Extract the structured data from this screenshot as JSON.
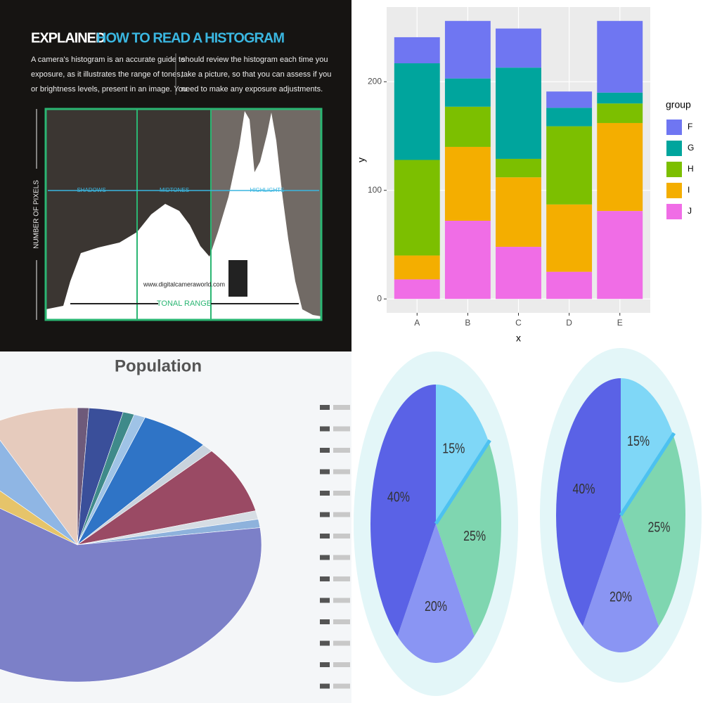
{
  "infographic": {
    "title_lead": "EXPLAINED",
    "title_main": "HOW TO READ A HISTOGRAM",
    "left_lines": [
      "A camera's histogram is an accurate guide to",
      "exposure, as it illustrates the range of tones,",
      "or brightness levels, present in an image. You"
    ],
    "right_lines": [
      "should review the histogram each time you",
      "take a picture, so that you can assess if you",
      "need to make any exposure adjustments."
    ],
    "y_label": "NUMBER OF PIXELS",
    "zones": [
      "SHADOWS",
      "MIDTONES",
      "HIGHLIGHTS"
    ],
    "website": "www.digitalcameraworld.com",
    "x_label": "TONAL RANGE"
  },
  "chart_data": [
    {
      "type": "stacked_bar",
      "x_label": "x",
      "y_label": "y",
      "legend_title": "group",
      "categories": [
        "A",
        "B",
        "C",
        "D",
        "E"
      ],
      "series": [
        {
          "name": "F",
          "color": "#6f76f2",
          "values": [
            24,
            53,
            36,
            15,
            66
          ]
        },
        {
          "name": "G",
          "color": "#00a59d",
          "values": [
            89,
            26,
            84,
            17,
            10
          ]
        },
        {
          "name": "H",
          "color": "#7cbf00",
          "values": [
            88,
            37,
            17,
            72,
            18
          ]
        },
        {
          "name": "I",
          "color": "#f4ae00",
          "values": [
            22,
            68,
            64,
            62,
            81
          ]
        },
        {
          "name": "J",
          "color": "#f06de6",
          "values": [
            18,
            72,
            48,
            25,
            81
          ]
        }
      ],
      "ylim": [
        -12.8,
        268.8
      ],
      "yticks": [
        0,
        100,
        200
      ],
      "grid": true
    },
    {
      "type": "pie3d",
      "title": "Population",
      "values": [
        1,
        3,
        1,
        1,
        6,
        1,
        8,
        1,
        1,
        61,
        3,
        5,
        8
      ],
      "colors": [
        "#6e5a7a",
        "#3a4f9a",
        "#3f8a8a",
        "#9fc3e6",
        "#2f74c6",
        "#c9d3dd",
        "#9a4a64",
        "#d6dde4",
        "#8eb2dc",
        "#7c80c8",
        "#e6c46a",
        "#8fb6e4",
        "#e6cbbd"
      ]
    },
    {
      "type": "pie",
      "values": [
        15,
        25,
        20,
        40
      ],
      "value_labels": [
        "15%",
        "25%",
        "20%",
        "40%"
      ],
      "colors": [
        "#7fd7f7",
        "#7fd6b0",
        "#8a95f3",
        "#5a62e6"
      ]
    },
    {
      "type": "pie",
      "values": [
        15,
        25,
        20,
        40
      ],
      "value_labels": [
        "15%",
        "25%",
        "20%",
        "40%"
      ],
      "colors": [
        "#7fd7f7",
        "#7fd6b0",
        "#8a95f3",
        "#5a62e6"
      ]
    }
  ]
}
